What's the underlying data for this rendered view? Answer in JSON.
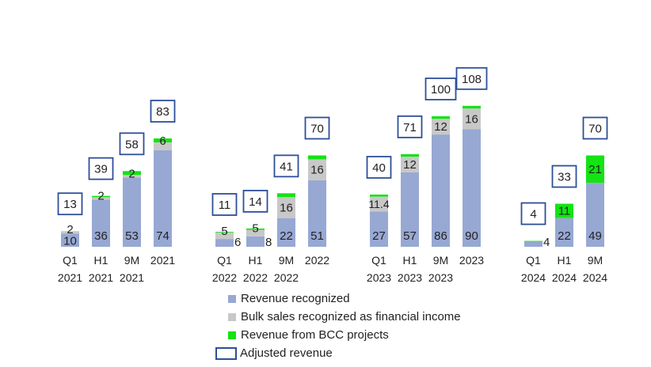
{
  "chart_data": {
    "type": "bar",
    "stacked": true,
    "colors": {
      "revenue": "#97a8d3",
      "bulk": "#c8c8c8",
      "bcc": "#14e314",
      "adjusted_box": "#2d4f99"
    },
    "groups": [
      {
        "bars": [
          {
            "period": "Q1",
            "year": "2021",
            "revenue": 10,
            "bulk": 2,
            "bcc": 0,
            "revenue_label": "10",
            "bulk_label": "2",
            "bcc_label": "",
            "adjusted": "13"
          },
          {
            "period": "H1",
            "year": "2021",
            "revenue": 36,
            "bulk": 2,
            "bcc": 1,
            "revenue_label": "36",
            "bulk_label": "2",
            "bcc_label": "",
            "adjusted": "39"
          },
          {
            "period": "9M",
            "year": "2021",
            "revenue": 53,
            "bulk": 2,
            "bcc": 3,
            "revenue_label": "53",
            "bulk_label": "2",
            "bcc_label": "",
            "adjusted": "58"
          },
          {
            "period": "2021",
            "year": "",
            "revenue": 74,
            "bulk": 6,
            "bcc": 3,
            "revenue_label": "74",
            "bulk_label": "6",
            "bcc_label": "",
            "adjusted": "83"
          }
        ]
      },
      {
        "bars": [
          {
            "period": "Q1",
            "year": "2022",
            "revenue": 6,
            "bulk": 5,
            "bcc": 0.5,
            "revenue_label": "6",
            "bulk_label": "5",
            "bcc_label": "",
            "adjusted": "11"
          },
          {
            "period": "H1",
            "year": "2022",
            "revenue": 8,
            "bulk": 5,
            "bcc": 1,
            "revenue_label": "8",
            "bulk_label": "5",
            "bcc_label": "",
            "adjusted": "14"
          },
          {
            "period": "9M",
            "year": "2022",
            "revenue": 22,
            "bulk": 16,
            "bcc": 3,
            "revenue_label": "22",
            "bulk_label": "16",
            "bcc_label": "",
            "adjusted": "41"
          },
          {
            "period": "2022",
            "year": "",
            "revenue": 51,
            "bulk": 16,
            "bcc": 3,
            "revenue_label": "51",
            "bulk_label": "16",
            "bcc_label": "",
            "adjusted": "70"
          }
        ]
      },
      {
        "bars": [
          {
            "period": "Q1",
            "year": "2023",
            "revenue": 27,
            "bulk": 11.4,
            "bcc": 1.6,
            "revenue_label": "27",
            "bulk_label": "11.4",
            "bcc_label": "",
            "adjusted": "40"
          },
          {
            "period": "H1",
            "year": "2023",
            "revenue": 57,
            "bulk": 12,
            "bcc": 2,
            "revenue_label": "57",
            "bulk_label": "12",
            "bcc_label": "",
            "adjusted": "71"
          },
          {
            "period": "9M",
            "year": "2023",
            "revenue": 86,
            "bulk": 12,
            "bcc": 2,
            "revenue_label": "86",
            "bulk_label": "12",
            "bcc_label": "",
            "adjusted": "100"
          },
          {
            "period": "2023",
            "year": "",
            "revenue": 90,
            "bulk": 16,
            "bcc": 2,
            "revenue_label": "90",
            "bulk_label": "16",
            "bcc_label": "",
            "adjusted": "108"
          }
        ]
      },
      {
        "bars": [
          {
            "period": "Q1",
            "year": "2024",
            "revenue": 4,
            "bulk": 0,
            "bcc": 0.5,
            "revenue_label": "4",
            "bulk_label": "",
            "bcc_label": "",
            "adjusted": "4"
          },
          {
            "period": "H1",
            "year": "2024",
            "revenue": 22,
            "bulk": 0,
            "bcc": 11,
            "revenue_label": "22",
            "bulk_label": "",
            "bcc_label": "11",
            "adjusted": "33"
          },
          {
            "period": "9M",
            "year": "2024",
            "revenue": 49,
            "bulk": 0,
            "bcc": 21,
            "revenue_label": "49",
            "bulk_label": "",
            "bcc_label": "21",
            "adjusted": "70"
          }
        ]
      }
    ],
    "legend": {
      "position": "bottom-center",
      "items": [
        {
          "key": "revenue",
          "label": "Revenue recognized"
        },
        {
          "key": "bulk",
          "label": "Bulk sales recognized as financial income"
        },
        {
          "key": "bcc",
          "label": "Revenue from BCC projects"
        },
        {
          "key": "adjusted_box",
          "label": "Adjusted revenue"
        }
      ]
    },
    "ylim": [
      0,
      120
    ],
    "grid": false
  }
}
